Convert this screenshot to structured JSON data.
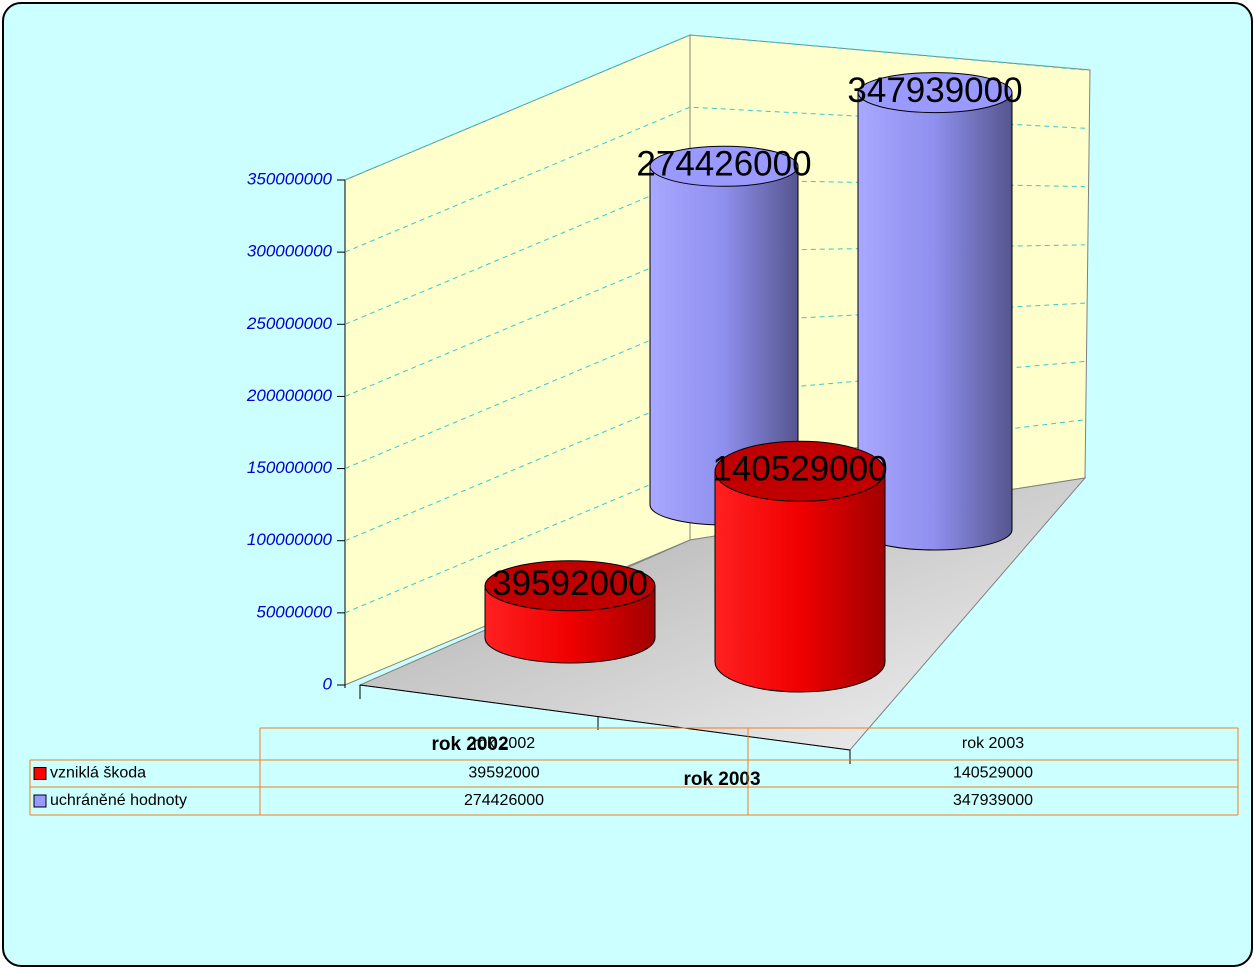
{
  "chart_data": {
    "type": "cylinder3d",
    "categories": [
      "rok 2002",
      "rok 2003"
    ],
    "series": [
      {
        "name": "vzniklá škoda",
        "color": "#ff0000",
        "values": [
          39592000,
          140529000
        ]
      },
      {
        "name": "uchráněné hodnoty",
        "color": "#9999ff",
        "values": [
          274426000,
          347939000
        ]
      }
    ],
    "ylim": [
      0,
      350000000
    ],
    "yticks": [
      0,
      50000000,
      100000000,
      150000000,
      200000000,
      250000000,
      300000000,
      350000000
    ],
    "grid": true,
    "data_table": true
  }
}
